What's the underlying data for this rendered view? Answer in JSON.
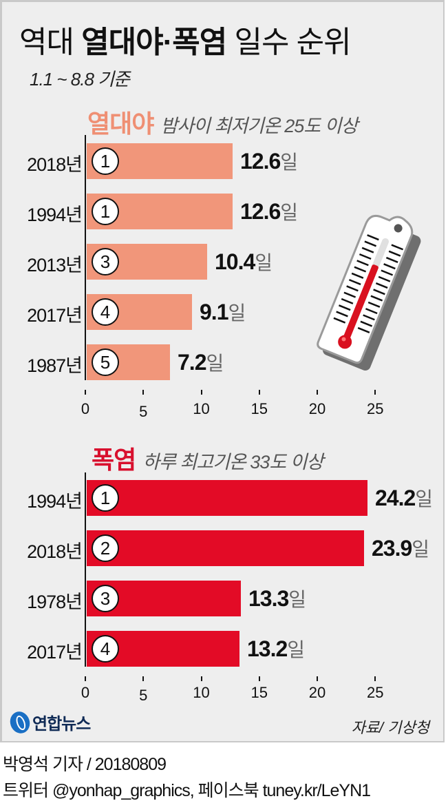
{
  "header": {
    "title_pre": "역대 ",
    "title_bold": "열대야·폭염",
    "title_post": " 일수 순위",
    "subtitle": "1.1 ~ 8.8 기준"
  },
  "sections": [
    {
      "name": "열대야",
      "desc": "밤사이 최저기온 25도 이상",
      "color": "#f1967a",
      "name_color": "#ef8f73",
      "rows": [
        {
          "year": "2018년",
          "rank": "1",
          "value": "12.6",
          "unit": "일"
        },
        {
          "year": "1994년",
          "rank": "1",
          "value": "12.6",
          "unit": "일"
        },
        {
          "year": "2013년",
          "rank": "3",
          "value": "10.4",
          "unit": "일"
        },
        {
          "year": "2017년",
          "rank": "4",
          "value": "9.1",
          "unit": "일"
        },
        {
          "year": "1987년",
          "rank": "5",
          "value": "7.2",
          "unit": "일"
        }
      ],
      "ticks": [
        "0",
        "5",
        "10",
        "15",
        "20",
        "25"
      ]
    },
    {
      "name": "폭염",
      "desc": "하루 최고기온 33도 이상",
      "color": "#e30b26",
      "name_color": "#d8102e",
      "rows": [
        {
          "year": "1994년",
          "rank": "1",
          "value": "24.2",
          "unit": "일"
        },
        {
          "year": "2018년",
          "rank": "2",
          "value": "23.9",
          "unit": "일"
        },
        {
          "year": "1978년",
          "rank": "3",
          "value": "13.3",
          "unit": "일"
        },
        {
          "year": "2017년",
          "rank": "4",
          "value": "13.2",
          "unit": "일"
        }
      ],
      "ticks": [
        "0",
        "5",
        "10",
        "15",
        "20",
        "25"
      ]
    }
  ],
  "footer": {
    "logo_text": "연합뉴스",
    "source": "자료/ 기상청",
    "byline": "박영석 기자 / 20180809",
    "social": "트위터 @yonhap_graphics, 페이스북 tuney.kr/LeYN1"
  },
  "illustration": {
    "icon": "thermometer-icon"
  },
  "chart_data": [
    {
      "type": "bar",
      "orientation": "horizontal",
      "title": "열대야 밤사이 최저기온 25도 이상",
      "categories": [
        "2018년",
        "1994년",
        "2013년",
        "2017년",
        "1987년"
      ],
      "ranks": [
        1,
        1,
        3,
        4,
        5
      ],
      "values": [
        12.6,
        12.6,
        10.4,
        9.1,
        7.2
      ],
      "unit": "일",
      "xlim": [
        0,
        25
      ],
      "xticks": [
        0,
        5,
        10,
        15,
        20,
        25
      ],
      "color": "#f1967a",
      "grid": false
    },
    {
      "type": "bar",
      "orientation": "horizontal",
      "title": "폭염 하루 최고기온 33도 이상",
      "categories": [
        "1994년",
        "2018년",
        "1978년",
        "2017년"
      ],
      "ranks": [
        1,
        2,
        3,
        4
      ],
      "values": [
        24.2,
        23.9,
        13.3,
        13.2
      ],
      "unit": "일",
      "xlim": [
        0,
        25
      ],
      "xticks": [
        0,
        5,
        10,
        15,
        20,
        25
      ],
      "color": "#e30b26",
      "grid": false
    }
  ]
}
